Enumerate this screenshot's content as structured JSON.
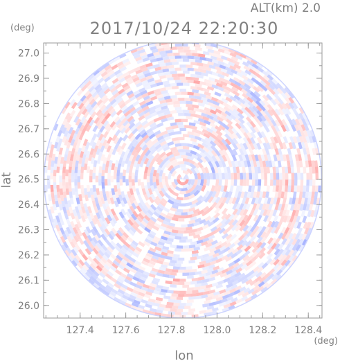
{
  "header": {
    "altitude": "ALT(km) 2.0",
    "timestamp": "2017/10/24 22:20:30"
  },
  "axes": {
    "x_label": "lon",
    "x_unit": "(deg)",
    "y_label": "lat",
    "y_unit": "(deg)",
    "x_range": [
      127.24,
      128.46
    ],
    "y_range": [
      25.95,
      27.04
    ],
    "x_ticks": [
      {
        "value": 127.4,
        "label": "127.4"
      },
      {
        "value": 127.6,
        "label": "127.6"
      },
      {
        "value": 127.8,
        "label": "127.8"
      },
      {
        "value": 128.0,
        "label": "128.0"
      },
      {
        "value": 128.2,
        "label": "128.2"
      },
      {
        "value": 128.4,
        "label": "128.4"
      }
    ],
    "y_ticks": [
      {
        "value": 26.0,
        "label": "26.0"
      },
      {
        "value": 26.1,
        "label": "26.1"
      },
      {
        "value": 26.2,
        "label": "26.2"
      },
      {
        "value": 26.3,
        "label": "26.3"
      },
      {
        "value": 26.4,
        "label": "26.4"
      },
      {
        "value": 26.5,
        "label": "26.5"
      },
      {
        "value": 26.6,
        "label": "26.6"
      },
      {
        "value": 26.7,
        "label": "26.7"
      },
      {
        "value": 26.8,
        "label": "26.8"
      },
      {
        "value": 26.9,
        "label": "26.9"
      },
      {
        "value": 27.0,
        "label": "27.0"
      }
    ]
  },
  "radar": {
    "center_lon": 127.85,
    "center_lat": 26.5,
    "radius_lat_deg": 0.55,
    "colors": {
      "positive": "#ff9a9a",
      "negative": "#9aa8ff",
      "frame": "#9a9a9a"
    }
  }
}
